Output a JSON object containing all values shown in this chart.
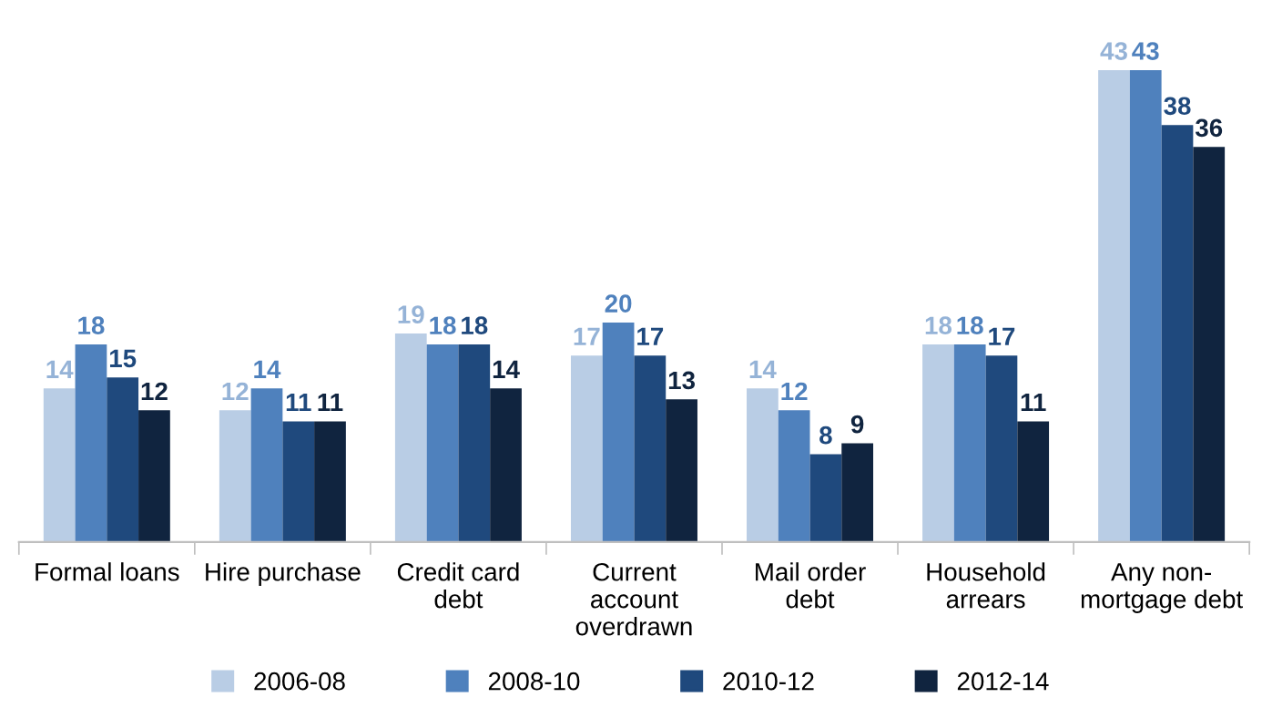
{
  "chart_data": {
    "type": "bar",
    "categories": [
      "Formal loans",
      "Hire purchase",
      "Credit card\ndebt",
      "Current\naccount\noverdrawn",
      "Mail order\ndebt",
      "Household\narrears",
      "Any non-\nmortgage debt"
    ],
    "series": [
      {
        "name": "2006-08",
        "color": "#b9cde5",
        "values": [
          14,
          12,
          19,
          17,
          14,
          18,
          43
        ]
      },
      {
        "name": "2008-10",
        "color": "#4f81bd",
        "values": [
          18,
          14,
          18,
          20,
          12,
          18,
          43
        ]
      },
      {
        "name": "2010-12",
        "color": "#1f497d",
        "values": [
          15,
          11,
          18,
          17,
          8,
          17,
          38
        ]
      },
      {
        "name": "2012-14",
        "color": "#10243f",
        "values": [
          12,
          11,
          14,
          13,
          9,
          11,
          36
        ]
      }
    ],
    "data_labels": true,
    "legend": "bottom",
    "grid": false
  }
}
